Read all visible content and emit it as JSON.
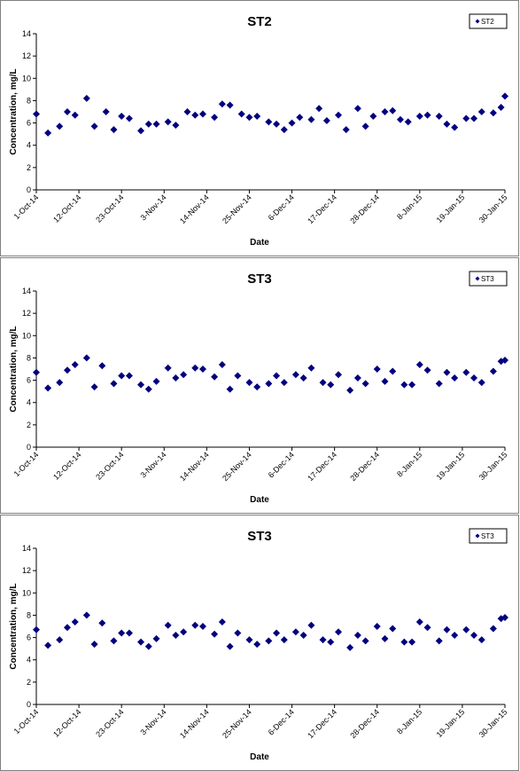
{
  "chart_data": [
    {
      "type": "scatter",
      "title": "ST2",
      "xlabel": "Date",
      "ylabel": "Concentration, mg/L",
      "ylim": [
        0,
        14
      ],
      "yticks": [
        0,
        2,
        4,
        6,
        8,
        10,
        12,
        14
      ],
      "xlim": [
        "2014-10-01",
        "2015-01-30"
      ],
      "xtick_labels": [
        "1-Oct-14",
        "12-Oct-14",
        "23-Oct-14",
        "3-Nov-14",
        "14-Nov-14",
        "25-Nov-14",
        "6-Dec-14",
        "17-Dec-14",
        "28-Dec-14",
        "8-Jan-15",
        "19-Jan-15",
        "30-Jan-15"
      ],
      "legend": "top-right",
      "grid": false,
      "marker_color": "#000080",
      "series": [
        {
          "name": "ST2",
          "x": [
            "2014-10-01",
            "2014-10-04",
            "2014-10-07",
            "2014-10-09",
            "2014-10-11",
            "2014-10-14",
            "2014-10-16",
            "2014-10-19",
            "2014-10-21",
            "2014-10-23",
            "2014-10-25",
            "2014-10-28",
            "2014-10-30",
            "2014-11-01",
            "2014-11-04",
            "2014-11-06",
            "2014-11-09",
            "2014-11-11",
            "2014-11-13",
            "2014-11-16",
            "2014-11-18",
            "2014-11-20",
            "2014-11-23",
            "2014-11-25",
            "2014-11-27",
            "2014-11-30",
            "2014-12-02",
            "2014-12-04",
            "2014-12-06",
            "2014-12-08",
            "2014-12-11",
            "2014-12-13",
            "2014-12-15",
            "2014-12-18",
            "2014-12-20",
            "2014-12-23",
            "2014-12-25",
            "2014-12-27",
            "2014-12-30",
            "2015-01-01",
            "2015-01-03",
            "2015-01-05",
            "2015-01-08",
            "2015-01-10",
            "2015-01-13",
            "2015-01-15",
            "2015-01-17",
            "2015-01-20",
            "2015-01-22",
            "2015-01-24",
            "2015-01-27",
            "2015-01-29",
            "2015-01-30"
          ],
          "y": [
            6.8,
            5.1,
            5.7,
            7.0,
            6.7,
            8.2,
            5.7,
            7.0,
            5.4,
            6.6,
            6.4,
            5.3,
            5.9,
            5.9,
            6.1,
            5.8,
            7.0,
            6.7,
            6.8,
            6.5,
            7.7,
            7.6,
            6.8,
            6.5,
            6.6,
            6.1,
            5.9,
            5.4,
            6.0,
            6.5,
            6.3,
            7.3,
            6.2,
            6.7,
            5.4,
            7.3,
            5.7,
            6.6,
            7.0,
            7.1,
            6.3,
            6.1,
            6.6,
            6.7,
            6.6,
            5.9,
            5.6,
            6.4,
            6.4,
            7.0,
            6.9,
            7.4,
            8.4
          ]
        }
      ]
    },
    {
      "type": "scatter",
      "title": "ST3",
      "xlabel": "Date",
      "ylabel": "Concentration, mg/L",
      "ylim": [
        0,
        14
      ],
      "yticks": [
        0,
        2,
        4,
        6,
        8,
        10,
        12,
        14
      ],
      "xlim": [
        "2014-10-01",
        "2015-01-30"
      ],
      "xtick_labels": [
        "1-Oct-14",
        "12-Oct-14",
        "23-Oct-14",
        "3-Nov-14",
        "14-Nov-14",
        "25-Nov-14",
        "6-Dec-14",
        "17-Dec-14",
        "28-Dec-14",
        "8-Jan-15",
        "19-Jan-15",
        "30-Jan-15"
      ],
      "legend": "top-right",
      "grid": false,
      "marker_color": "#000080",
      "series": [
        {
          "name": "ST3",
          "x": [
            "2014-10-01",
            "2014-10-04",
            "2014-10-07",
            "2014-10-09",
            "2014-10-11",
            "2014-10-14",
            "2014-10-16",
            "2014-10-18",
            "2014-10-21",
            "2014-10-23",
            "2014-10-25",
            "2014-10-28",
            "2014-10-30",
            "2014-11-01",
            "2014-11-04",
            "2014-11-06",
            "2014-11-08",
            "2014-11-11",
            "2014-11-13",
            "2014-11-16",
            "2014-11-18",
            "2014-11-20",
            "2014-11-22",
            "2014-11-25",
            "2014-11-27",
            "2014-11-30",
            "2014-12-02",
            "2014-12-04",
            "2014-12-07",
            "2014-12-09",
            "2014-12-11",
            "2014-12-14",
            "2014-12-16",
            "2014-12-18",
            "2014-12-21",
            "2014-12-23",
            "2014-12-25",
            "2014-12-28",
            "2014-12-30",
            "2015-01-01",
            "2015-01-04",
            "2015-01-06",
            "2015-01-08",
            "2015-01-10",
            "2015-01-13",
            "2015-01-15",
            "2015-01-17",
            "2015-01-20",
            "2015-01-22",
            "2015-01-24",
            "2015-01-27",
            "2015-01-29",
            "2015-01-30"
          ],
          "y": [
            6.7,
            5.3,
            5.8,
            6.9,
            7.4,
            8.0,
            5.4,
            7.3,
            5.7,
            6.4,
            6.4,
            5.6,
            5.2,
            5.9,
            7.1,
            6.2,
            6.5,
            7.1,
            7.0,
            6.3,
            7.4,
            5.2,
            6.4,
            5.8,
            5.4,
            5.7,
            6.4,
            5.8,
            6.5,
            6.2,
            7.1,
            5.8,
            5.6,
            6.5,
            5.1,
            6.2,
            5.7,
            7.0,
            5.9,
            6.8,
            5.6,
            5.6,
            7.4,
            6.9,
            5.7,
            6.7,
            6.2,
            6.7,
            6.2,
            5.8,
            6.8,
            7.7,
            7.8
          ]
        }
      ]
    },
    {
      "type": "scatter",
      "title": "ST3",
      "xlabel": "Date",
      "ylabel": "Concentration, mg/L",
      "ylim": [
        0,
        14
      ],
      "yticks": [
        0,
        2,
        4,
        6,
        8,
        10,
        12,
        14
      ],
      "xlim": [
        "2014-10-01",
        "2015-01-30"
      ],
      "xtick_labels": [
        "1-Oct-14",
        "12-Oct-14",
        "23-Oct-14",
        "3-Nov-14",
        "14-Nov-14",
        "25-Nov-14",
        "6-Dec-14",
        "17-Dec-14",
        "28-Dec-14",
        "8-Jan-15",
        "19-Jan-15",
        "30-Jan-15"
      ],
      "legend": "top-right",
      "grid": false,
      "marker_color": "#000080",
      "series": [
        {
          "name": "ST3",
          "x": [
            "2014-10-01",
            "2014-10-04",
            "2014-10-07",
            "2014-10-09",
            "2014-10-11",
            "2014-10-14",
            "2014-10-16",
            "2014-10-18",
            "2014-10-21",
            "2014-10-23",
            "2014-10-25",
            "2014-10-28",
            "2014-10-30",
            "2014-11-01",
            "2014-11-04",
            "2014-11-06",
            "2014-11-08",
            "2014-11-11",
            "2014-11-13",
            "2014-11-16",
            "2014-11-18",
            "2014-11-20",
            "2014-11-22",
            "2014-11-25",
            "2014-11-27",
            "2014-11-30",
            "2014-12-02",
            "2014-12-04",
            "2014-12-07",
            "2014-12-09",
            "2014-12-11",
            "2014-12-14",
            "2014-12-16",
            "2014-12-18",
            "2014-12-21",
            "2014-12-23",
            "2014-12-25",
            "2014-12-28",
            "2014-12-30",
            "2015-01-01",
            "2015-01-04",
            "2015-01-06",
            "2015-01-08",
            "2015-01-10",
            "2015-01-13",
            "2015-01-15",
            "2015-01-17",
            "2015-01-20",
            "2015-01-22",
            "2015-01-24",
            "2015-01-27",
            "2015-01-29",
            "2015-01-30"
          ],
          "y": [
            6.7,
            5.3,
            5.8,
            6.9,
            7.4,
            8.0,
            5.4,
            7.3,
            5.7,
            6.4,
            6.4,
            5.6,
            5.2,
            5.9,
            7.1,
            6.2,
            6.5,
            7.1,
            7.0,
            6.3,
            7.4,
            5.2,
            6.4,
            5.8,
            5.4,
            5.7,
            6.4,
            5.8,
            6.5,
            6.2,
            7.1,
            5.8,
            5.6,
            6.5,
            5.1,
            6.2,
            5.7,
            7.0,
            5.9,
            6.8,
            5.6,
            5.6,
            7.4,
            6.9,
            5.7,
            6.7,
            6.2,
            6.7,
            6.2,
            5.8,
            6.8,
            7.7,
            7.8
          ]
        }
      ]
    }
  ]
}
